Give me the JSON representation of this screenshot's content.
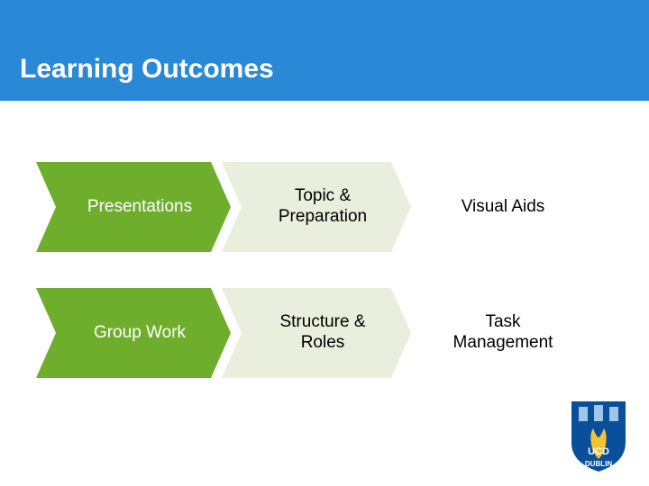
{
  "header": {
    "title": "Learning Outcomes",
    "bg_color": "#2a89d6",
    "title_color": "#ffffff",
    "title_fontsize": 30
  },
  "rows": [
    {
      "primary": "Presentations",
      "secondary": "Topic & Preparation",
      "tertiary": "Visual Aids"
    },
    {
      "primary": "Group Work",
      "secondary": "Structure & Roles",
      "tertiary": "Task Management"
    }
  ],
  "chevron_styles": {
    "primary_fill": "#6fae2d",
    "secondary_fill": "#e9eedd",
    "tertiary_fill": "#ffffff",
    "primary_text_color": "#ffffff",
    "secondary_text_color": "#000000",
    "label_fontsize": 19,
    "chevron_height": 100,
    "notch_depth": 22
  },
  "logo": {
    "name": "UCD Dublin",
    "shield_color": "#0a4f9c",
    "text_color": "#0a4f9c",
    "line1": "UCD",
    "line2": "DUBLIN"
  }
}
